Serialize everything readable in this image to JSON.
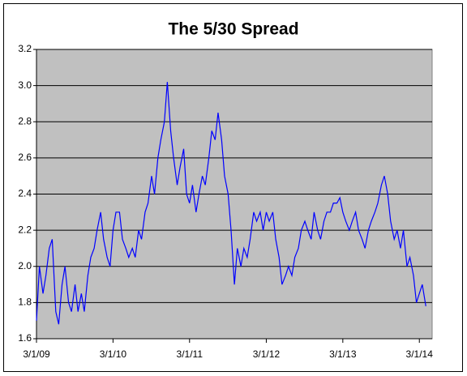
{
  "chart_data": {
    "type": "line",
    "title": "The 5/30 Spread",
    "x": [
      "2009-03-01",
      "2009-03-15",
      "2009-04-01",
      "2009-04-15",
      "2009-05-01",
      "2009-05-15",
      "2009-06-01",
      "2009-06-15",
      "2009-07-01",
      "2009-07-15",
      "2009-08-01",
      "2009-08-15",
      "2009-09-01",
      "2009-09-15",
      "2009-10-01",
      "2009-10-15",
      "2009-11-01",
      "2009-11-15",
      "2009-12-01",
      "2009-12-15",
      "2010-01-01",
      "2010-01-15",
      "2010-02-01",
      "2010-02-15",
      "2010-03-01",
      "2010-03-15",
      "2010-04-01",
      "2010-04-15",
      "2010-05-01",
      "2010-05-15",
      "2010-06-01",
      "2010-06-15",
      "2010-07-01",
      "2010-07-15",
      "2010-08-01",
      "2010-08-15",
      "2010-09-01",
      "2010-09-15",
      "2010-10-01",
      "2010-10-15",
      "2010-11-01",
      "2010-11-15",
      "2010-12-01",
      "2010-12-15",
      "2011-01-01",
      "2011-01-15",
      "2011-02-01",
      "2011-02-15",
      "2011-03-01",
      "2011-03-15",
      "2011-04-01",
      "2011-04-15",
      "2011-05-01",
      "2011-05-15",
      "2011-06-01",
      "2011-06-15",
      "2011-07-01",
      "2011-07-15",
      "2011-08-01",
      "2011-08-15",
      "2011-09-01",
      "2011-09-15",
      "2011-10-01",
      "2011-10-15",
      "2011-11-01",
      "2011-11-15",
      "2011-12-01",
      "2011-12-15",
      "2012-01-01",
      "2012-01-15",
      "2012-02-01",
      "2012-02-15",
      "2012-03-01",
      "2012-03-15",
      "2012-04-01",
      "2012-04-15",
      "2012-05-01",
      "2012-05-15",
      "2012-06-01",
      "2012-06-15",
      "2012-07-01",
      "2012-07-15",
      "2012-08-01",
      "2012-08-15",
      "2012-09-01",
      "2012-09-15",
      "2012-10-01",
      "2012-10-15",
      "2012-11-01",
      "2012-11-15",
      "2012-12-01",
      "2012-12-15",
      "2013-01-01",
      "2013-01-15",
      "2013-02-01",
      "2013-02-15",
      "2013-03-01",
      "2013-03-15",
      "2013-04-01",
      "2013-04-15",
      "2013-05-01",
      "2013-05-15",
      "2013-06-01",
      "2013-06-15",
      "2013-07-01",
      "2013-07-15",
      "2013-08-01",
      "2013-08-15",
      "2013-09-01",
      "2013-09-15",
      "2013-10-01",
      "2013-10-15",
      "2013-11-01",
      "2013-11-15",
      "2013-12-01",
      "2013-12-15",
      "2014-01-01",
      "2014-01-15",
      "2014-02-01",
      "2014-02-15",
      "2014-03-01",
      "2014-03-15",
      "2014-04-01"
    ],
    "series": [
      {
        "color": "#0000ff",
        "values": [
          1.7,
          2.0,
          1.85,
          1.95,
          2.1,
          2.15,
          1.75,
          1.68,
          1.9,
          2.0,
          1.8,
          1.75,
          1.9,
          1.75,
          1.85,
          1.75,
          1.95,
          2.05,
          2.1,
          2.2,
          2.3,
          2.15,
          2.05,
          2.0,
          2.2,
          2.3,
          2.3,
          2.15,
          2.1,
          2.05,
          2.1,
          2.05,
          2.2,
          2.15,
          2.3,
          2.35,
          2.5,
          2.4,
          2.6,
          2.7,
          2.8,
          3.02,
          2.75,
          2.6,
          2.45,
          2.55,
          2.65,
          2.4,
          2.35,
          2.45,
          2.3,
          2.4,
          2.5,
          2.45,
          2.6,
          2.75,
          2.7,
          2.85,
          2.7,
          2.5,
          2.4,
          2.2,
          1.9,
          2.1,
          2.0,
          2.1,
          2.05,
          2.15,
          2.3,
          2.25,
          2.3,
          2.2,
          2.3,
          2.25,
          2.3,
          2.15,
          2.05,
          1.9,
          1.95,
          2.0,
          1.95,
          2.05,
          2.1,
          2.2,
          2.25,
          2.2,
          2.15,
          2.3,
          2.2,
          2.15,
          2.25,
          2.3,
          2.3,
          2.35,
          2.35,
          2.38,
          2.3,
          2.25,
          2.2,
          2.25,
          2.3,
          2.2,
          2.15,
          2.1,
          2.2,
          2.25,
          2.3,
          2.35,
          2.45,
          2.5,
          2.4,
          2.25,
          2.15,
          2.2,
          2.1,
          2.2,
          2.0,
          2.05,
          1.95,
          1.8,
          1.85,
          1.9,
          1.78
        ]
      }
    ],
    "xlim": [
      "2009-03-01",
      "2014-05-01"
    ],
    "xticks": [
      {
        "value": "2009-03-01",
        "label": "3/1/09"
      },
      {
        "value": "2010-03-01",
        "label": "3/1/10"
      },
      {
        "value": "2011-03-01",
        "label": "3/1/11"
      },
      {
        "value": "2012-03-01",
        "label": "3/1/12"
      },
      {
        "value": "2013-03-01",
        "label": "3/1/13"
      },
      {
        "value": "2014-03-01",
        "label": "3/1/14"
      }
    ],
    "ylim": [
      1.6,
      3.2
    ],
    "yticks": [
      1.6,
      1.8,
      {
        "value": 2.0,
        "label": "2.0"
      },
      2.2,
      2.4,
      2.6,
      2.8,
      {
        "value": 3.0,
        "label": "3.0"
      },
      3.2
    ],
    "grid": true
  }
}
